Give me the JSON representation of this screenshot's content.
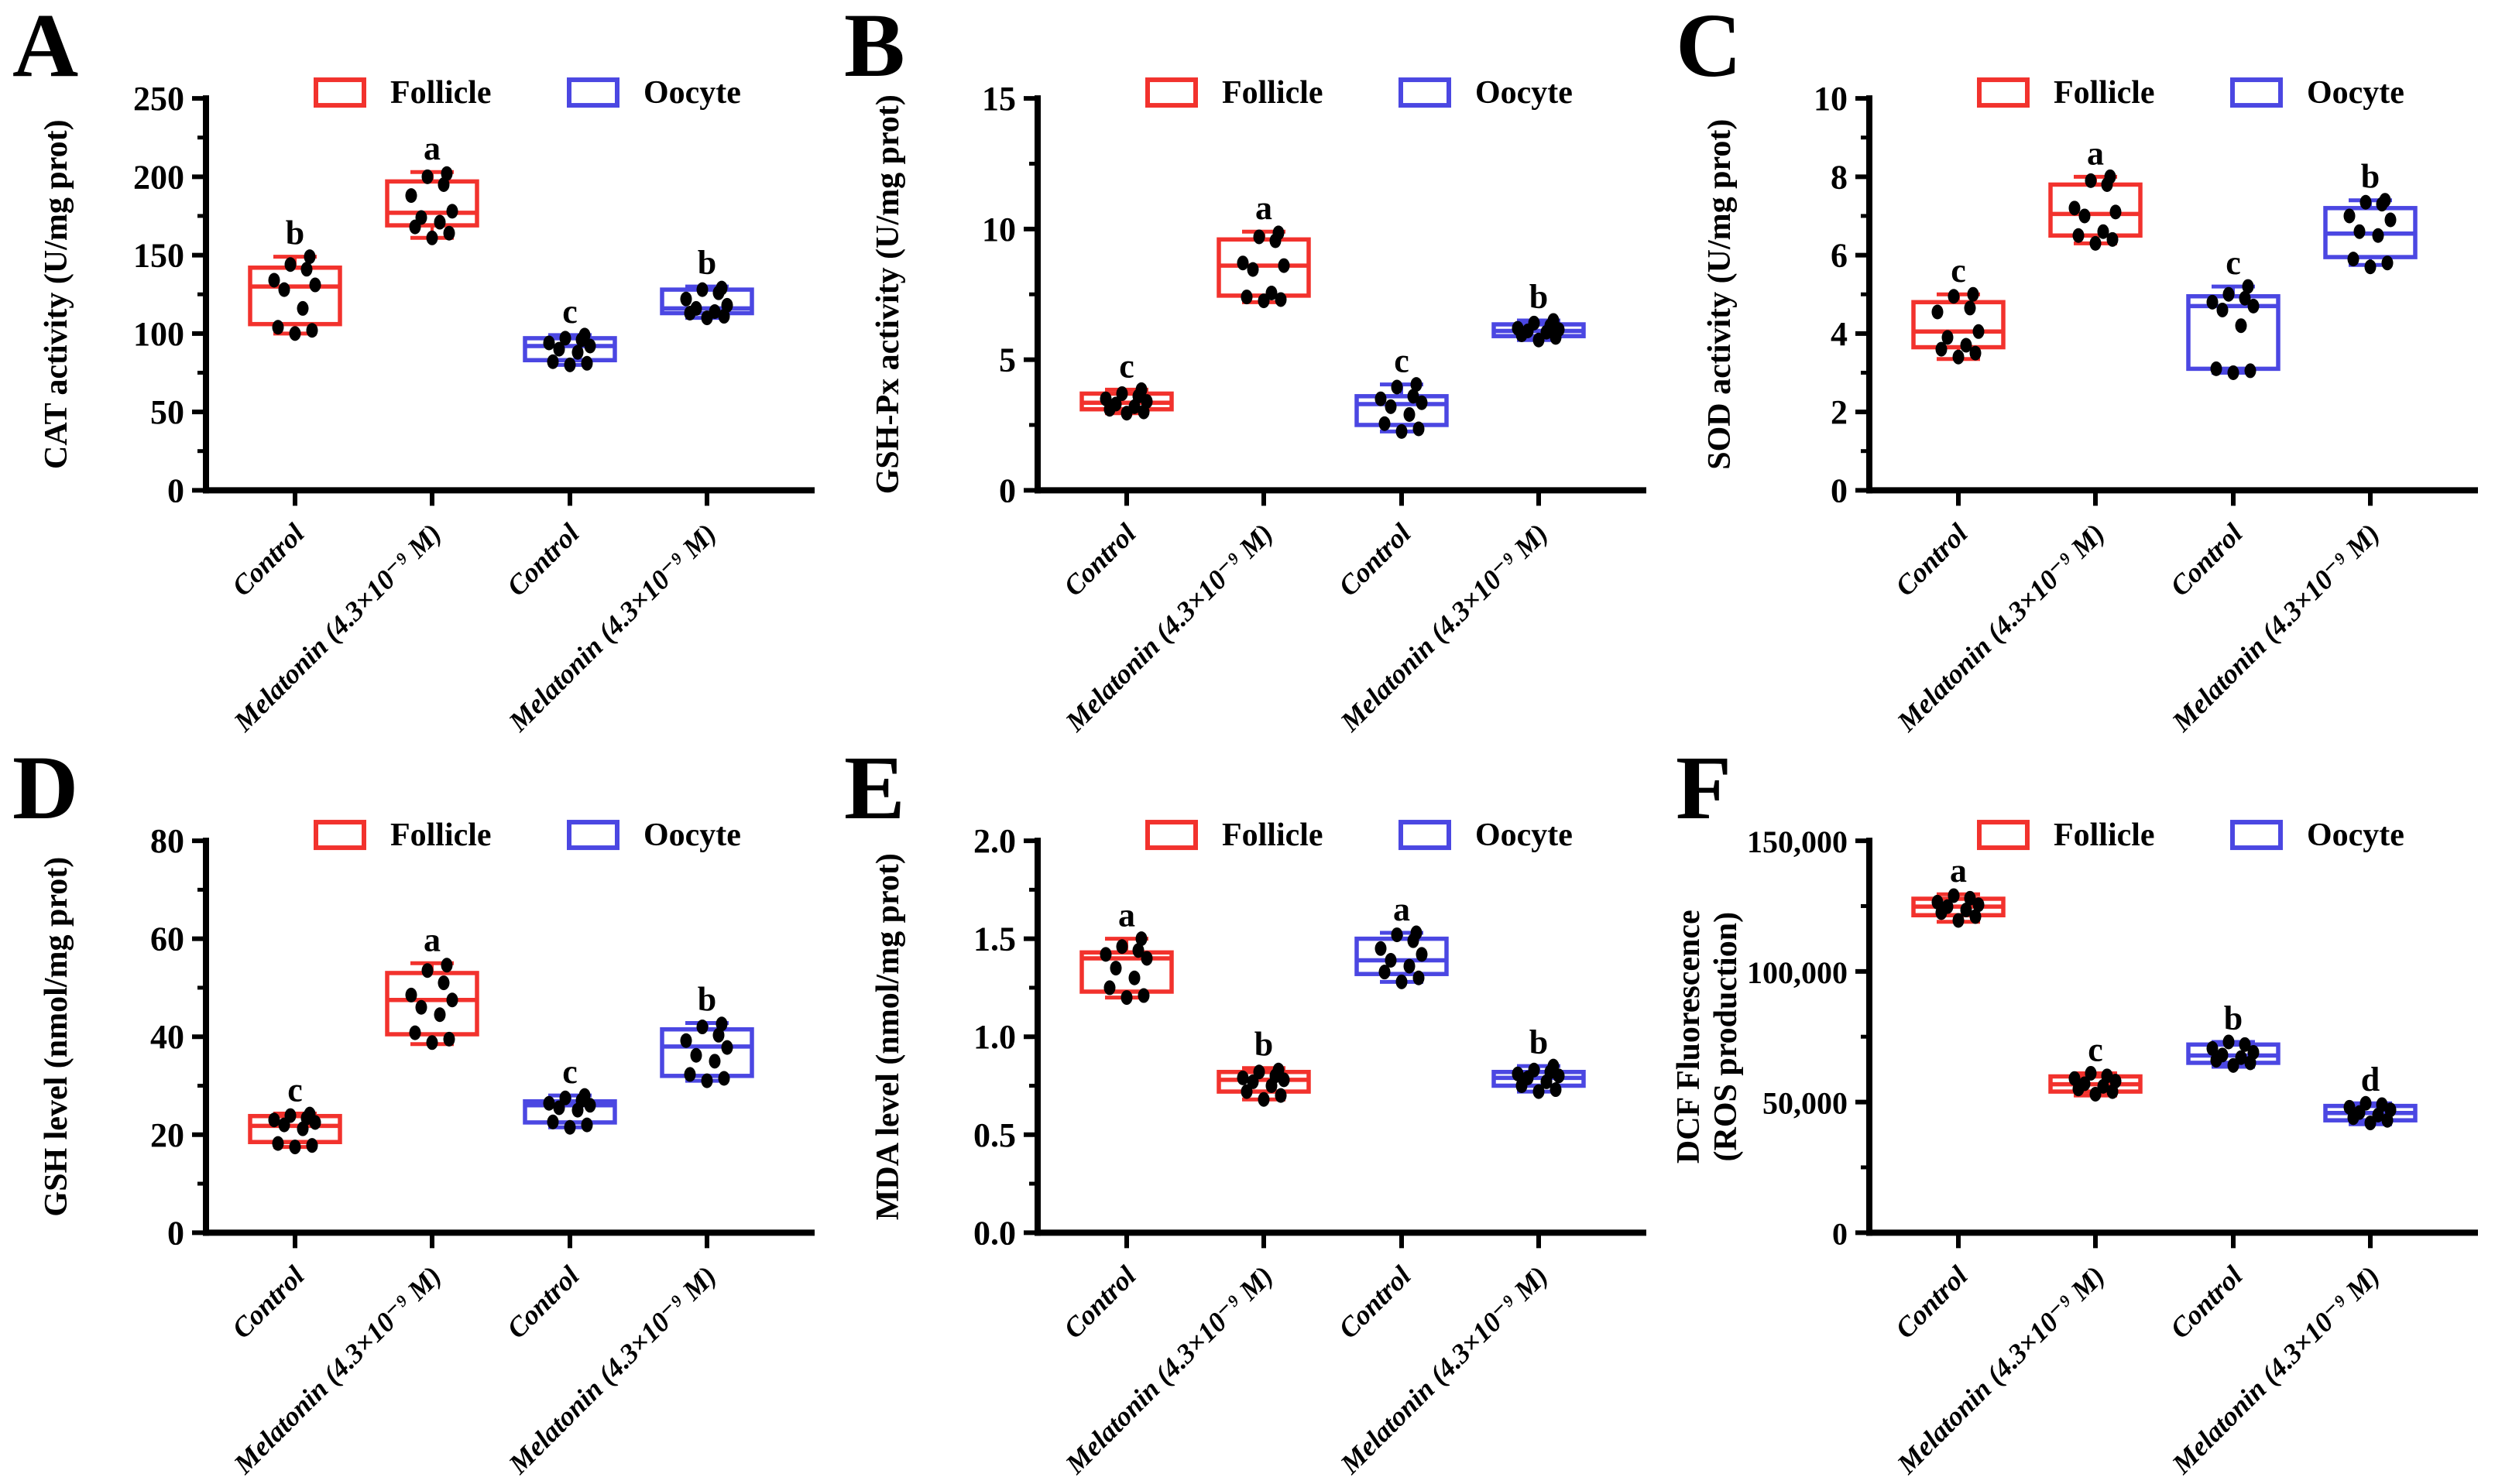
{
  "figure_background": "#ffffff",
  "series": [
    {
      "name": "Follicle",
      "color": "#F2322D"
    },
    {
      "name": "Oocyte",
      "color": "#4B47E2"
    }
  ],
  "point_color": "#000000",
  "axis_color": "#000000",
  "x_categories": [
    "Control",
    "Melatonin (4.3×10⁻⁹ M)",
    "Control",
    "Melatonin (4.3×10⁻⁹ M)"
  ],
  "chart_data": [
    {
      "panel_letter": "A",
      "type": "box",
      "ylabel": "CAT activity (U/mg prot)",
      "ylim": [
        0,
        250
      ],
      "yticks": [
        {
          "v": 0,
          "label": "0"
        },
        {
          "v": 50,
          "label": "50"
        },
        {
          "v": 100,
          "label": "100"
        },
        {
          "v": 150,
          "label": "150"
        },
        {
          "v": 200,
          "label": "200"
        },
        {
          "v": 250,
          "label": "250"
        }
      ],
      "categories": [
        "Control",
        "Melatonin (4.3×10⁻⁹ M)",
        "Control",
        "Melatonin (4.3×10⁻⁹ M)"
      ],
      "groups": [
        {
          "series": "Follicle",
          "sig": "b",
          "whislo": 100,
          "q1": 106,
          "med": 130,
          "q3": 142,
          "whishi": 149,
          "points": [
            100,
            102,
            104,
            116,
            128,
            131,
            134,
            141,
            144,
            149
          ]
        },
        {
          "series": "Follicle",
          "sig": "a",
          "whislo": 161,
          "q1": 169,
          "med": 177,
          "q3": 197,
          "whishi": 203,
          "points": [
            161,
            164,
            168,
            171,
            174,
            178,
            188,
            195,
            200,
            202
          ]
        },
        {
          "series": "Oocyte",
          "sig": "c",
          "whislo": 80,
          "q1": 83,
          "med": 92,
          "q3": 97,
          "whishi": 99,
          "points": [
            80,
            81,
            82,
            88,
            90,
            92,
            94,
            96,
            97,
            99
          ]
        },
        {
          "series": "Oocyte",
          "sig": "b",
          "whislo": 110,
          "q1": 113,
          "med": 116,
          "q3": 128,
          "whishi": 130,
          "points": [
            110,
            111,
            113,
            114,
            116,
            118,
            122,
            126,
            128,
            129
          ]
        }
      ]
    },
    {
      "panel_letter": "B",
      "type": "box",
      "ylabel": "GSH-Px activity (U/mg prot)",
      "ylim": [
        0,
        15
      ],
      "yticks": [
        {
          "v": 0,
          "label": "0"
        },
        {
          "v": 5,
          "label": "5"
        },
        {
          "v": 10,
          "label": "10"
        },
        {
          "v": 15,
          "label": "15"
        }
      ],
      "categories": [
        "Control",
        "Melatonin (4.3×10⁻⁹ M)",
        "Control",
        "Melatonin (4.3×10⁻⁹ M)"
      ],
      "groups": [
        {
          "series": "Follicle",
          "sig": "c",
          "whislo": 2.95,
          "q1": 3.1,
          "med": 3.35,
          "q3": 3.7,
          "whishi": 3.85,
          "points": [
            2.95,
            3.0,
            3.1,
            3.2,
            3.3,
            3.4,
            3.5,
            3.6,
            3.7,
            3.85
          ]
        },
        {
          "series": "Follicle",
          "sig": "a",
          "whislo": 7.2,
          "q1": 7.45,
          "med": 8.6,
          "q3": 9.6,
          "whishi": 9.9,
          "points": [
            7.25,
            7.3,
            7.4,
            7.55,
            8.45,
            8.6,
            8.7,
            9.55,
            9.7,
            9.85
          ]
        },
        {
          "series": "Oocyte",
          "sig": "c",
          "whislo": 2.25,
          "q1": 2.5,
          "med": 3.3,
          "q3": 3.6,
          "whishi": 4.05,
          "points": [
            2.25,
            2.35,
            2.55,
            2.9,
            3.2,
            3.35,
            3.5,
            3.6,
            3.95,
            4.05
          ]
        },
        {
          "series": "Oocyte",
          "sig": "b",
          "whislo": 5.75,
          "q1": 5.9,
          "med": 6.1,
          "q3": 6.35,
          "whishi": 6.5,
          "points": [
            5.75,
            5.85,
            5.95,
            6.05,
            6.1,
            6.15,
            6.2,
            6.3,
            6.4,
            6.5
          ]
        }
      ]
    },
    {
      "panel_letter": "C",
      "type": "box",
      "ylabel": "SOD activity (U/mg prot)",
      "ylim": [
        0,
        10
      ],
      "yticks": [
        {
          "v": 0,
          "label": "0"
        },
        {
          "v": 2,
          "label": "2"
        },
        {
          "v": 4,
          "label": "4"
        },
        {
          "v": 6,
          "label": "6"
        },
        {
          "v": 8,
          "label": "8"
        },
        {
          "v": 10,
          "label": "10"
        }
      ],
      "categories": [
        "Control",
        "Melatonin (4.3×10⁻⁹ M)",
        "Control",
        "Melatonin (4.3×10⁻⁹ M)"
      ],
      "groups": [
        {
          "series": "Follicle",
          "sig": "c",
          "whislo": 3.35,
          "q1": 3.65,
          "med": 4.05,
          "q3": 4.8,
          "whishi": 5.0,
          "points": [
            3.4,
            3.5,
            3.6,
            3.7,
            3.9,
            4.05,
            4.55,
            4.65,
            4.95,
            5.0
          ]
        },
        {
          "series": "Follicle",
          "sig": "a",
          "whislo": 6.3,
          "q1": 6.5,
          "med": 7.05,
          "q3": 7.8,
          "whishi": 8.0,
          "points": [
            6.3,
            6.4,
            6.5,
            6.6,
            7.0,
            7.1,
            7.2,
            7.8,
            7.9,
            8.0
          ]
        },
        {
          "series": "Oocyte",
          "sig": "c",
          "whislo": 3.0,
          "q1": 3.1,
          "med": 4.7,
          "q3": 4.95,
          "whishi": 5.2,
          "points": [
            3.0,
            3.05,
            3.1,
            4.2,
            4.6,
            4.7,
            4.8,
            4.9,
            5.0,
            5.2
          ]
        },
        {
          "series": "Oocyte",
          "sig": "b",
          "whislo": 5.75,
          "q1": 5.95,
          "med": 6.55,
          "q3": 7.2,
          "whishi": 7.4,
          "points": [
            5.7,
            5.8,
            5.9,
            6.5,
            6.6,
            6.9,
            7.0,
            7.3,
            7.35,
            7.4
          ]
        }
      ]
    },
    {
      "panel_letter": "D",
      "type": "box",
      "ylabel": "GSH level (nmol/mg prot)",
      "ylim": [
        0,
        80
      ],
      "yticks": [
        {
          "v": 0,
          "label": "0"
        },
        {
          "v": 20,
          "label": "20"
        },
        {
          "v": 40,
          "label": "40"
        },
        {
          "v": 60,
          "label": "60"
        },
        {
          "v": 80,
          "label": "80"
        }
      ],
      "categories": [
        "Control",
        "Melatonin (4.3×10⁻⁹ M)",
        "Control",
        "Melatonin (4.3×10⁻⁹ M)"
      ],
      "groups": [
        {
          "series": "Follicle",
          "sig": "c",
          "whislo": 17.5,
          "q1": 18.5,
          "med": 21.8,
          "q3": 23.8,
          "whishi": 24.3,
          "points": [
            17.5,
            17.8,
            18.2,
            21.2,
            22,
            22.5,
            23,
            23.4,
            23.9,
            24.2
          ]
        },
        {
          "series": "Follicle",
          "sig": "a",
          "whislo": 38.5,
          "q1": 40.5,
          "med": 47.5,
          "q3": 53,
          "whishi": 55,
          "points": [
            38.8,
            39.5,
            40.8,
            44.5,
            46,
            47.5,
            48.5,
            51,
            53.5,
            54.6
          ]
        },
        {
          "series": "Oocyte",
          "sig": "c",
          "whislo": 21.5,
          "q1": 22.5,
          "med": 26,
          "q3": 26.8,
          "whishi": 28,
          "points": [
            21.5,
            22,
            22.6,
            25,
            25.5,
            26,
            26.4,
            27,
            27.5,
            28
          ]
        },
        {
          "series": "Oocyte",
          "sig": "b",
          "whislo": 31,
          "q1": 32,
          "med": 38,
          "q3": 41.5,
          "whishi": 42.8,
          "points": [
            31,
            31.5,
            32.3,
            35,
            36.2,
            37.8,
            39.2,
            40.3,
            42,
            42.6
          ]
        }
      ]
    },
    {
      "panel_letter": "E",
      "type": "box",
      "ylabel": "MDA level (nmol/mg prot)",
      "ylim": [
        0,
        2
      ],
      "yticks": [
        {
          "v": 0,
          "label": "0.0"
        },
        {
          "v": 0.5,
          "label": "0.5"
        },
        {
          "v": 1,
          "label": "1.0"
        },
        {
          "v": 1.5,
          "label": "1.5"
        },
        {
          "v": 2,
          "label": "2.0"
        }
      ],
      "categories": [
        "Control",
        "Melatonin (4.3×10⁻⁹ M)",
        "Control",
        "Melatonin (4.3×10⁻⁹ M)"
      ],
      "groups": [
        {
          "series": "Follicle",
          "sig": "a",
          "whislo": 1.2,
          "q1": 1.23,
          "med": 1.4,
          "q3": 1.43,
          "whishi": 1.5,
          "points": [
            1.2,
            1.21,
            1.25,
            1.3,
            1.35,
            1.4,
            1.42,
            1.44,
            1.46,
            1.5
          ]
        },
        {
          "series": "Follicle",
          "sig": "b",
          "whislo": 0.68,
          "q1": 0.72,
          "med": 0.78,
          "q3": 0.82,
          "whishi": 0.84,
          "points": [
            0.68,
            0.7,
            0.72,
            0.75,
            0.77,
            0.78,
            0.79,
            0.8,
            0.82,
            0.83
          ]
        },
        {
          "series": "Oocyte",
          "sig": "a",
          "whislo": 1.28,
          "q1": 1.32,
          "med": 1.39,
          "q3": 1.5,
          "whishi": 1.53,
          "points": [
            1.28,
            1.3,
            1.33,
            1.36,
            1.39,
            1.42,
            1.45,
            1.49,
            1.52,
            1.53
          ]
        },
        {
          "series": "Oocyte",
          "sig": "b",
          "whislo": 0.72,
          "q1": 0.75,
          "med": 0.79,
          "q3": 0.82,
          "whishi": 0.85,
          "points": [
            0.72,
            0.73,
            0.75,
            0.77,
            0.79,
            0.8,
            0.81,
            0.82,
            0.83,
            0.85
          ]
        }
      ]
    },
    {
      "panel_letter": "F",
      "type": "box",
      "ylabel": "DCF Fluorescence (ROS production)",
      "ylabel_lines": [
        "DCF Fluorescence",
        "(ROS production)"
      ],
      "ylim": [
        0,
        150000
      ],
      "ytick_font": 40,
      "yticks": [
        {
          "v": 0,
          "label": "0"
        },
        {
          "v": 50000,
          "label": "50,000"
        },
        {
          "v": 100000,
          "label": "100,000"
        },
        {
          "v": 150000,
          "label": "150,000"
        }
      ],
      "categories": [
        "Control",
        "Melatonin (4.3×10⁻⁹ M)",
        "Control",
        "Melatonin (4.3×10⁻⁹ M)"
      ],
      "groups": [
        {
          "series": "Follicle",
          "sig": "a",
          "whislo": 119000,
          "q1": 121500,
          "med": 124800,
          "q3": 127800,
          "whishi": 129500,
          "points": [
            119500,
            121000,
            122500,
            123500,
            124800,
            125500,
            126500,
            128000,
            129000
          ]
        },
        {
          "series": "Follicle",
          "sig": "c",
          "whislo": 52500,
          "q1": 54000,
          "med": 56800,
          "q3": 59800,
          "whishi": 61000,
          "points": [
            53000,
            54000,
            55000,
            56000,
            57000,
            58000,
            59000,
            60000,
            61000
          ]
        },
        {
          "series": "Oocyte",
          "sig": "b",
          "whislo": 63500,
          "q1": 65000,
          "med": 67800,
          "q3": 72000,
          "whishi": 73000,
          "points": [
            64000,
            65000,
            66000,
            67000,
            68000,
            69000,
            70500,
            72000,
            73000
          ]
        },
        {
          "series": "Oocyte",
          "sig": "d",
          "whislo": 41500,
          "q1": 43000,
          "med": 45800,
          "q3": 48500,
          "whishi": 49500,
          "points": [
            42000,
            43000,
            44000,
            45000,
            46000,
            47000,
            48000,
            49000,
            49500
          ]
        }
      ]
    }
  ]
}
